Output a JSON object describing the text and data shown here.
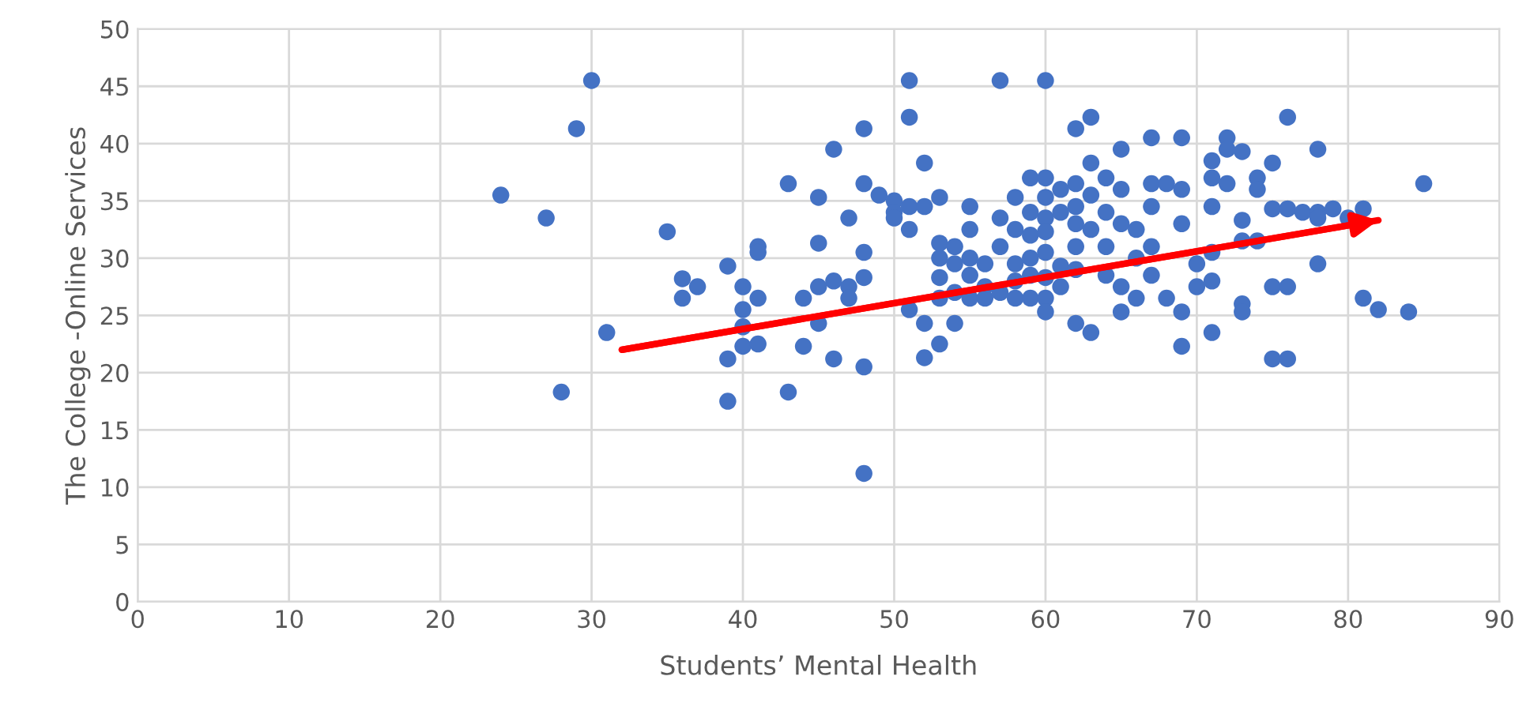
{
  "chart_data": {
    "type": "scatter",
    "xlabel": "Students’ Mental Health",
    "ylabel": "The College -Online Services",
    "xlim": [
      0,
      90
    ],
    "xticks": [
      0,
      10,
      20,
      30,
      40,
      50,
      60,
      70,
      80,
      90
    ],
    "ylim": [
      0,
      50
    ],
    "yticks": [
      0,
      5,
      10,
      15,
      20,
      25,
      30,
      35,
      40,
      45,
      50
    ],
    "grid": true,
    "series": [
      {
        "marker": "circle",
        "color": "#4472c4",
        "x": [
          24,
          27,
          28,
          29,
          30,
          31,
          35,
          36,
          36,
          37,
          39,
          39,
          39,
          40,
          40,
          40,
          40,
          41,
          41,
          41,
          41,
          43,
          43,
          44,
          44,
          45,
          45,
          45,
          45,
          46,
          46,
          46,
          47,
          47,
          47,
          48,
          48,
          48,
          48,
          48,
          48,
          49,
          50,
          50,
          50,
          51,
          51,
          51,
          51,
          51,
          52,
          52,
          52,
          52,
          53,
          53,
          53,
          53,
          53,
          53,
          54,
          54,
          54,
          54,
          55,
          55,
          55,
          55,
          55,
          56,
          56,
          56,
          57,
          57,
          57,
          57,
          58,
          58,
          58,
          58,
          58,
          59,
          59,
          59,
          59,
          59,
          59,
          60,
          60,
          60,
          60,
          60,
          60,
          60,
          60,
          60,
          61,
          61,
          61,
          61,
          62,
          62,
          62,
          62,
          62,
          62,
          62,
          63,
          63,
          63,
          63,
          63,
          64,
          64,
          64,
          64,
          65,
          65,
          65,
          65,
          65,
          66,
          66,
          66,
          67,
          67,
          67,
          67,
          67,
          68,
          68,
          69,
          69,
          69,
          69,
          69,
          70,
          70,
          71,
          71,
          71,
          71,
          71,
          71,
          72,
          72,
          72,
          73,
          73,
          73,
          73,
          73,
          74,
          74,
          74,
          75,
          75,
          75,
          75,
          76,
          76,
          76,
          76,
          77,
          78,
          78,
          78,
          78,
          79,
          80,
          81,
          81,
          82,
          84,
          85
        ],
        "values": [
          35.5,
          33.5,
          18.3,
          41.3,
          45.5,
          23.5,
          32.3,
          28.2,
          26.5,
          27.5,
          29.3,
          21.2,
          17.5,
          27.5,
          25.5,
          24,
          22.3,
          31,
          30.5,
          26.5,
          22.5,
          36.5,
          18.3,
          26.5,
          22.3,
          35.3,
          31.3,
          27.5,
          24.3,
          39.5,
          28,
          21.2,
          33.5,
          27.5,
          26.5,
          41.3,
          36.5,
          30.5,
          28.3,
          20.5,
          11.2,
          35.5,
          35,
          34,
          33.5,
          45.5,
          42.3,
          34.5,
          32.5,
          25.5,
          38.3,
          34.5,
          24.3,
          21.3,
          35.3,
          31.3,
          30,
          28.3,
          26.5,
          22.5,
          31,
          29.5,
          27,
          24.3,
          34.5,
          32.5,
          30,
          28.5,
          26.5,
          29.5,
          27.5,
          26.5,
          45.5,
          33.5,
          31,
          27,
          35.3,
          32.5,
          29.5,
          28,
          26.5,
          37,
          34,
          32,
          30,
          28.5,
          26.5,
          45.5,
          37,
          35.3,
          33.5,
          32.3,
          30.5,
          28.3,
          26.5,
          25.3,
          36,
          34,
          29.3,
          27.5,
          41.3,
          36.5,
          34.5,
          33,
          31,
          29,
          24.3,
          42.3,
          38.3,
          35.5,
          32.5,
          23.5,
          37,
          34,
          31,
          28.5,
          39.5,
          36,
          33,
          27.5,
          25.3,
          32.5,
          30,
          26.5,
          40.5,
          36.5,
          34.5,
          31,
          28.5,
          36.5,
          26.5,
          40.5,
          36,
          33,
          25.3,
          22.3,
          29.5,
          27.5,
          38.5,
          37,
          34.5,
          30.5,
          28,
          23.5,
          40.5,
          39.5,
          36.5,
          39.3,
          33.3,
          31.5,
          26,
          25.3,
          37,
          36,
          31.5,
          38.3,
          34.3,
          27.5,
          21.2,
          42.3,
          34.3,
          27.5,
          21.2,
          34,
          39.5,
          34,
          33.5,
          29.5,
          34.3,
          33.5,
          34.3,
          26.5,
          25.5,
          25.3,
          36.5
        ]
      },
      {
        "type": "line",
        "color": "#ff0000",
        "x": [
          32,
          82
        ],
        "values": [
          22,
          33.3
        ]
      }
    ]
  }
}
